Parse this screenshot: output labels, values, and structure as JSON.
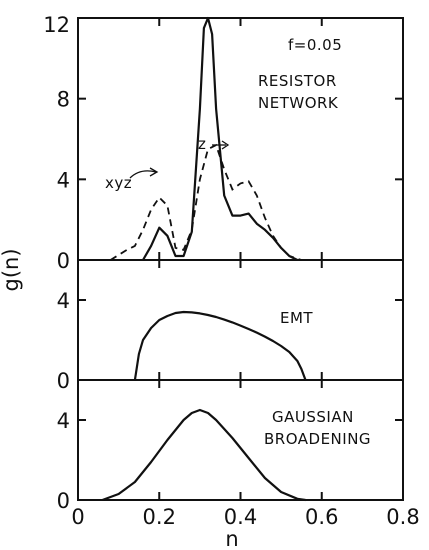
{
  "chart_data": [
    {
      "panel": "top",
      "type": "line",
      "xlim": [
        0,
        0.8
      ],
      "ylim": [
        0,
        12
      ],
      "yticks": [
        "0",
        "4",
        "8",
        "12"
      ],
      "annotations": [
        "f=0.05",
        "RESISTOR",
        "NETWORK",
        "z",
        "xyz"
      ],
      "series": [
        {
          "name": "z",
          "style": "solid",
          "x": [
            0.16,
            0.18,
            0.2,
            0.22,
            0.24,
            0.26,
            0.28,
            0.3,
            0.31,
            0.32,
            0.33,
            0.34,
            0.36,
            0.38,
            0.4,
            0.42,
            0.44,
            0.46,
            0.48,
            0.5,
            0.52,
            0.54
          ],
          "y": [
            0,
            0.7,
            1.6,
            1.2,
            0.2,
            0.2,
            1.4,
            7.5,
            11.5,
            12,
            11.2,
            7.5,
            3.2,
            2.2,
            2.2,
            2.3,
            1.8,
            1.5,
            1.1,
            0.6,
            0.2,
            0
          ]
        },
        {
          "name": "xyz",
          "style": "dashed",
          "x": [
            0.08,
            0.12,
            0.14,
            0.16,
            0.18,
            0.2,
            0.22,
            0.24,
            0.26,
            0.28,
            0.3,
            0.32,
            0.34,
            0.36,
            0.38,
            0.4,
            0.42,
            0.44,
            0.46,
            0.48,
            0.5,
            0.52,
            0.55
          ],
          "y": [
            0,
            0.5,
            0.7,
            1.5,
            2.5,
            3.1,
            2.7,
            0.6,
            0.5,
            1.5,
            4,
            5.5,
            5.7,
            4.5,
            3.5,
            3.8,
            3.9,
            3.2,
            2.1,
            1.2,
            0.6,
            0.2,
            0
          ]
        }
      ]
    },
    {
      "panel": "middle",
      "type": "line",
      "xlim": [
        0,
        0.8
      ],
      "ylim": [
        0,
        6
      ],
      "yticks": [
        "0",
        "4"
      ],
      "annotations": [
        "EMT"
      ],
      "series": [
        {
          "style": "solid",
          "x": [
            0.14,
            0.15,
            0.16,
            0.18,
            0.2,
            0.22,
            0.24,
            0.26,
            0.28,
            0.3,
            0.32,
            0.34,
            0.36,
            0.38,
            0.4,
            0.42,
            0.44,
            0.46,
            0.48,
            0.5,
            0.52,
            0.54,
            0.55,
            0.56
          ],
          "y": [
            0,
            1.3,
            2.0,
            2.6,
            3.0,
            3.2,
            3.35,
            3.4,
            3.38,
            3.33,
            3.25,
            3.15,
            3.02,
            2.88,
            2.72,
            2.55,
            2.37,
            2.17,
            1.95,
            1.7,
            1.4,
            0.95,
            0.55,
            0
          ]
        }
      ]
    },
    {
      "panel": "bottom",
      "type": "line",
      "xlim": [
        0,
        0.8
      ],
      "ylim": [
        0,
        6
      ],
      "yticks": [
        "0",
        "4"
      ],
      "xticks": [
        "0",
        "0.2",
        "0.4",
        "0.6",
        "0.8"
      ],
      "xlabel": "n",
      "annotations": [
        "GAUSSIAN",
        "BROADENING"
      ],
      "series": [
        {
          "style": "solid",
          "x": [
            0.06,
            0.1,
            0.14,
            0.18,
            0.22,
            0.26,
            0.28,
            0.3,
            0.32,
            0.34,
            0.38,
            0.42,
            0.46,
            0.5,
            0.54,
            0.56
          ],
          "y": [
            0,
            0.3,
            0.9,
            1.9,
            3.0,
            4.0,
            4.35,
            4.5,
            4.35,
            4.0,
            3.1,
            2.1,
            1.1,
            0.4,
            0.06,
            0
          ]
        }
      ]
    }
  ],
  "ylabel": "g(n)"
}
